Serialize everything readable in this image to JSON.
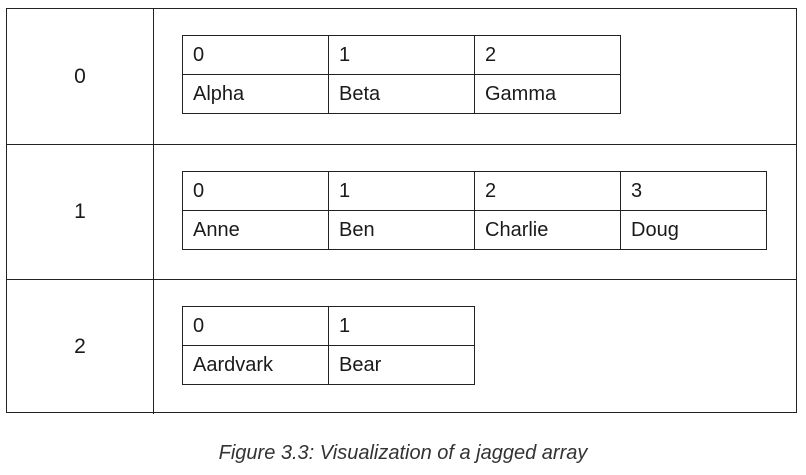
{
  "rows": [
    {
      "index": "0",
      "cells": [
        {
          "idx": "0",
          "val": "Alpha"
        },
        {
          "idx": "1",
          "val": "Beta"
        },
        {
          "idx": "2",
          "val": "Gamma"
        }
      ]
    },
    {
      "index": "1",
      "cells": [
        {
          "idx": "0",
          "val": "Anne"
        },
        {
          "idx": "1",
          "val": "Ben"
        },
        {
          "idx": "2",
          "val": "Charlie"
        },
        {
          "idx": "3",
          "val": "Doug"
        }
      ]
    },
    {
      "index": "2",
      "cells": [
        {
          "idx": "0",
          "val": "Aardvark"
        },
        {
          "idx": "1",
          "val": "Bear"
        }
      ]
    }
  ],
  "caption": "Figure 3.3: Visualization of a jagged array"
}
